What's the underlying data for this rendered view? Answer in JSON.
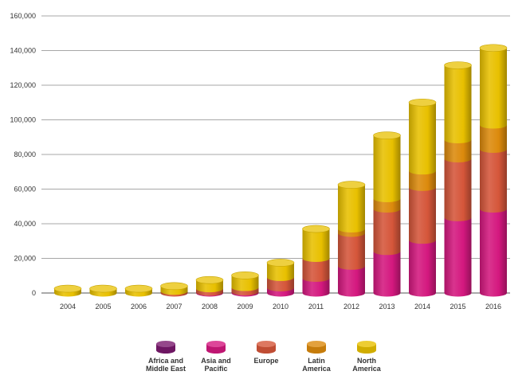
{
  "chart_data": {
    "type": "bar",
    "stacked": true,
    "categories": [
      "2004",
      "2005",
      "2006",
      "2007",
      "2008",
      "2009",
      "2010",
      "2011",
      "2012",
      "2013",
      "2014",
      "2015",
      "2016"
    ],
    "series": [
      {
        "name": "Africa and Middle East",
        "color": "#7a1a6e",
        "values": [
          0,
          0,
          0,
          0,
          0,
          0,
          0,
          0,
          0,
          0,
          0,
          0,
          0
        ]
      },
      {
        "name": "Asia and Pacific",
        "color": "#d4187f",
        "values": [
          0,
          0,
          0,
          0,
          500,
          700,
          3000,
          8500,
          15500,
          24000,
          30500,
          43500,
          48500
        ]
      },
      {
        "name": "Europe",
        "color": "#d5563a",
        "values": [
          0,
          0,
          0,
          1000,
          2000,
          2500,
          6000,
          11500,
          19000,
          24500,
          30500,
          34000,
          34500
        ]
      },
      {
        "name": "Latin America",
        "color": "#dc8a0c",
        "values": [
          0,
          0,
          0,
          0,
          0,
          0,
          0,
          0,
          2500,
          6000,
          9500,
          11000,
          14000
        ]
      },
      {
        "name": "North America",
        "color": "#e8c000",
        "values": [
          2500,
          2500,
          2500,
          3000,
          5000,
          7000,
          8500,
          17000,
          25500,
          36500,
          39500,
          43000,
          44500
        ]
      }
    ],
    "y_ticks": [
      "0",
      "20,000",
      "40,000",
      "60,000",
      "80,000",
      "100,000",
      "120,000",
      "140,000",
      "160,000"
    ],
    "ylim": [
      0,
      160000
    ],
    "legend": {
      "position": "bottom",
      "items": [
        {
          "lines": [
            "Africa and",
            "Middle East"
          ],
          "color": "#7a1a6e"
        },
        {
          "lines": [
            "Asia and",
            "Pacific"
          ],
          "color": "#d4187f"
        },
        {
          "lines": [
            "Europe"
          ],
          "color": "#d5563a"
        },
        {
          "lines": [
            "Latin",
            "America"
          ],
          "color": "#dc8a0c"
        },
        {
          "lines": [
            "North",
            "America"
          ],
          "color": "#e8c000"
        }
      ]
    },
    "grid": true
  }
}
